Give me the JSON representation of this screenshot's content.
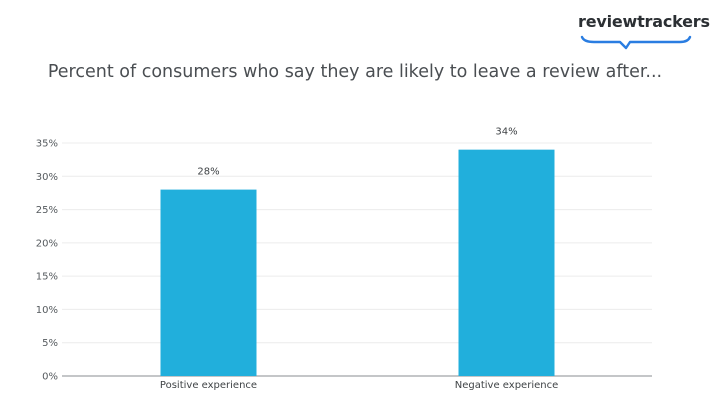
{
  "brand": {
    "logo_text": "reviewtrackers",
    "accent_color": "#2a7de1"
  },
  "chart_data": {
    "type": "bar",
    "title": "Percent of consumers who say they are likely to leave a review after...",
    "categories": [
      "Positive experience",
      "Negative experience"
    ],
    "values": [
      28,
      34
    ],
    "value_labels": [
      "28%",
      "34%"
    ],
    "xlabel": "",
    "ylabel": "",
    "ylim": [
      0,
      35
    ],
    "y_ticks": [
      0,
      5,
      10,
      15,
      20,
      25,
      30,
      35
    ],
    "y_tick_labels": [
      "0%",
      "5%",
      "10%",
      "15%",
      "20%",
      "25%",
      "30%",
      "35%"
    ],
    "grid": true,
    "legend": false,
    "bar_color": "#21afdc"
  }
}
